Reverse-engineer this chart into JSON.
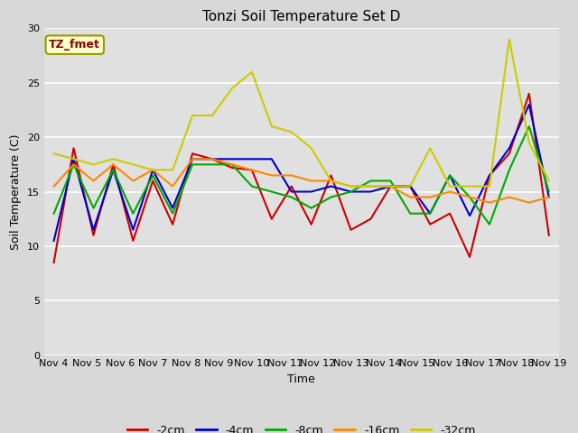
{
  "title": "Tonzi Soil Temperature Set D",
  "xlabel": "Time",
  "ylabel": "Soil Temperature (C)",
  "annotation": "TZ_fmet",
  "ylim": [
    0,
    30
  ],
  "yticks": [
    0,
    5,
    10,
    15,
    20,
    25,
    30
  ],
  "x_labels": [
    "Nov 4",
    "Nov 5",
    "Nov 6",
    "Nov 7",
    "Nov 8",
    "Nov 9",
    "Nov 10",
    "Nov 11",
    "Nov 12",
    "Nov 13",
    "Nov 14",
    "Nov 15",
    "Nov 16",
    "Nov 17",
    "Nov 18",
    "Nov 19"
  ],
  "n_ticks": 16,
  "series": {
    "-2cm": [
      8.5,
      19.0,
      11.0,
      17.5,
      10.5,
      16.0,
      12.0,
      18.5,
      18.0,
      17.2,
      17.0,
      12.5,
      15.5,
      12.0,
      16.5,
      11.5,
      12.5,
      15.5,
      15.5,
      12.0,
      13.0,
      9.0,
      16.5,
      18.5,
      24.0,
      11.0
    ],
    "-4cm": [
      10.5,
      18.0,
      11.5,
      17.0,
      11.5,
      17.0,
      13.5,
      18.0,
      18.0,
      18.0,
      18.0,
      18.0,
      15.0,
      15.0,
      15.5,
      15.0,
      15.0,
      15.5,
      15.5,
      13.0,
      16.5,
      12.8,
      16.5,
      19.0,
      23.0,
      14.5
    ],
    "-8cm": [
      13.0,
      17.5,
      13.5,
      17.0,
      13.0,
      16.5,
      13.0,
      17.5,
      17.5,
      17.5,
      15.5,
      15.0,
      14.5,
      13.5,
      14.5,
      15.0,
      16.0,
      16.0,
      13.0,
      13.0,
      16.5,
      14.5,
      12.0,
      17.0,
      21.0,
      15.0
    ],
    "-16cm": [
      15.5,
      17.5,
      16.0,
      17.5,
      16.0,
      17.0,
      15.5,
      18.0,
      18.0,
      17.5,
      17.0,
      16.5,
      16.5,
      16.0,
      16.0,
      15.5,
      15.5,
      15.5,
      14.5,
      14.5,
      15.0,
      14.5,
      14.0,
      14.5,
      14.0,
      14.5
    ],
    "-32cm": [
      18.5,
      18.0,
      17.5,
      18.0,
      17.5,
      17.0,
      17.0,
      22.0,
      22.0,
      24.5,
      26.0,
      21.0,
      20.5,
      19.0,
      16.0,
      15.5,
      15.5,
      15.5,
      15.5,
      19.0,
      15.5,
      15.5,
      15.5,
      29.0,
      19.5,
      16.0
    ]
  },
  "colors": {
    "-2cm": "#cc0000",
    "-4cm": "#0000cc",
    "-8cm": "#00aa00",
    "-16cm": "#ff8800",
    "-32cm": "#cccc00"
  },
  "fig_facecolor": "#d8d8d8",
  "plot_bg_color": "#e0e0e0",
  "grid_color": "#ffffff",
  "figsize": [
    6.4,
    4.8
  ],
  "dpi": 100
}
